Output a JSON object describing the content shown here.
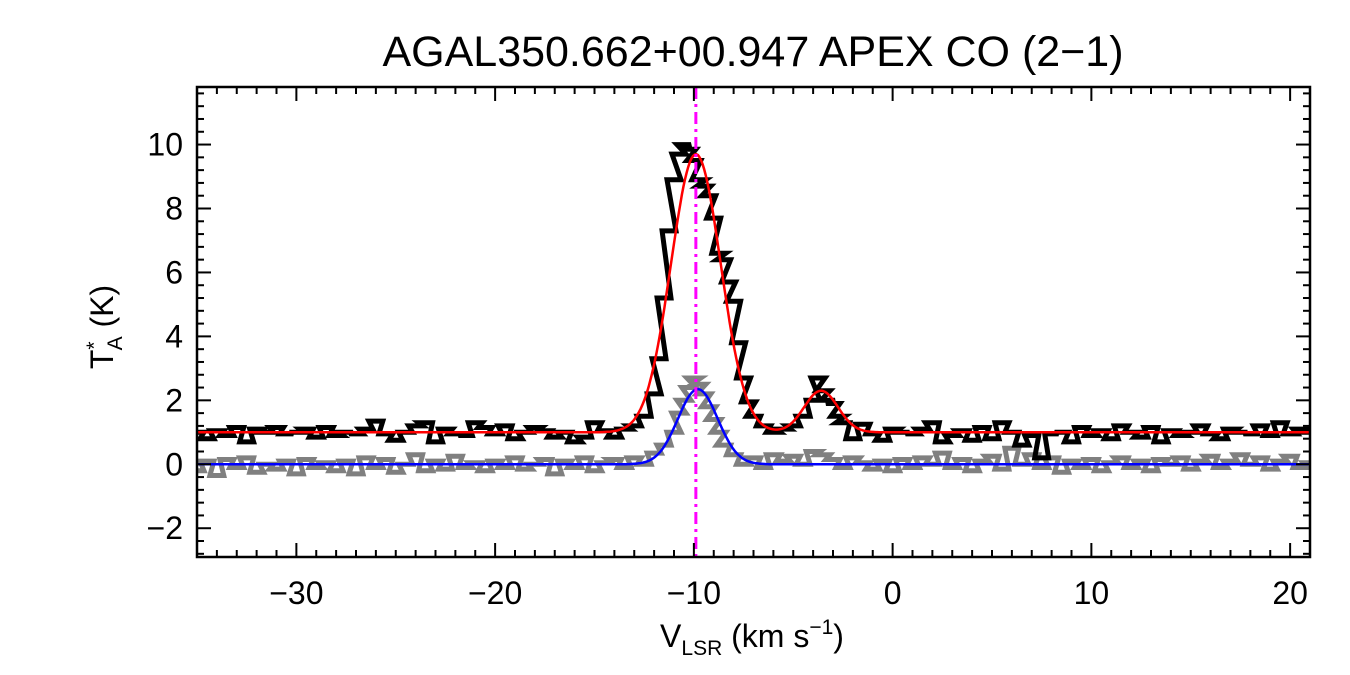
{
  "chart_data": {
    "type": "line",
    "title": "AGAL350.662+00.947  APEX CO (2−1)",
    "xlabel": {
      "main": "V",
      "sub": "LSR",
      "rest": " (km s",
      "sup": "−1",
      "end": ")"
    },
    "ylabel": {
      "main": "T",
      "sup": "*",
      "sub": "A",
      "rest": " (K)"
    },
    "xlim": [
      -35,
      21
    ],
    "ylim": [
      -2.9,
      11.8
    ],
    "x_ticks": [
      -30,
      -20,
      -10,
      0,
      10,
      20
    ],
    "x_tick_labels": [
      "−30",
      "−20",
      "−10",
      "0",
      "10",
      "20"
    ],
    "y_ticks": [
      -2,
      0,
      2,
      4,
      6,
      8,
      10
    ],
    "y_tick_labels": [
      "−2",
      "0",
      "2",
      "4",
      "6",
      "8",
      "10"
    ],
    "vline": {
      "x": -9.9,
      "color": "#ff00ff",
      "style": "dash-dot"
    },
    "series": [
      {
        "kind": "histogram",
        "color": "#000000",
        "channel_width": 0.35,
        "points": [
          [
            -35,
            1.0
          ],
          [
            -34.5,
            0.8
          ],
          [
            -34,
            1.05
          ],
          [
            -33.5,
            0.9
          ],
          [
            -33,
            1.15
          ],
          [
            -32.5,
            0.7
          ],
          [
            -32,
            1.1
          ],
          [
            -31.5,
            1.0
          ],
          [
            -31,
            1.15
          ],
          [
            -30.5,
            0.95
          ],
          [
            -30,
            1.0
          ],
          [
            -29.5,
            1.1
          ],
          [
            -29,
            0.85
          ],
          [
            -28.5,
            1.15
          ],
          [
            -28,
            0.9
          ],
          [
            -27.5,
            1.0
          ],
          [
            -27,
            0.95
          ],
          [
            -26.5,
            1.1
          ],
          [
            -26,
            1.35
          ],
          [
            -25.5,
            0.95
          ],
          [
            -25,
            0.75
          ],
          [
            -24.5,
            1.0
          ],
          [
            -24,
            1.2
          ],
          [
            -23.5,
            1.3
          ],
          [
            -23,
            0.7
          ],
          [
            -22.5,
            1.1
          ],
          [
            -22,
            0.95
          ],
          [
            -21.5,
            0.9
          ],
          [
            -21,
            1.3
          ],
          [
            -20.5,
            1.15
          ],
          [
            -20,
            0.95
          ],
          [
            -19.5,
            1.2
          ],
          [
            -19,
            0.8
          ],
          [
            -18.5,
            1.0
          ],
          [
            -18,
            1.15
          ],
          [
            -17.5,
            1.05
          ],
          [
            -17,
            0.85
          ],
          [
            -16.5,
            1.0
          ],
          [
            -16,
            0.7
          ],
          [
            -15.5,
            0.85
          ],
          [
            -15,
            1.3
          ],
          [
            -14.5,
            1.05
          ],
          [
            -14,
            0.85
          ],
          [
            -13.5,
            1.1
          ],
          [
            -13,
            1.2
          ],
          [
            -12.5,
            1.5
          ],
          [
            -12,
            2.2
          ],
          [
            -11.75,
            3.3
          ],
          [
            -11.5,
            5.2
          ],
          [
            -11.25,
            7.3
          ],
          [
            -11,
            8.9
          ],
          [
            -10.75,
            9.7
          ],
          [
            -10.5,
            10.0
          ],
          [
            -10.25,
            9.85
          ],
          [
            -10,
            9.5
          ],
          [
            -9.75,
            8.9
          ],
          [
            -9.5,
            8.7
          ],
          [
            -9.25,
            8.4
          ],
          [
            -9,
            7.7
          ],
          [
            -8.75,
            6.6
          ],
          [
            -8.5,
            6.4
          ],
          [
            -8.25,
            5.7
          ],
          [
            -8,
            5.1
          ],
          [
            -7.75,
            3.8
          ],
          [
            -7.5,
            2.7
          ],
          [
            -7.25,
            1.95
          ],
          [
            -7,
            1.5
          ],
          [
            -6.5,
            1.2
          ],
          [
            -6,
            1.0
          ],
          [
            -5.5,
            1.1
          ],
          [
            -5,
            1.2
          ],
          [
            -4.5,
            1.5
          ],
          [
            -4,
            2.0
          ],
          [
            -3.75,
            2.7
          ],
          [
            -3.5,
            2.3
          ],
          [
            -3.25,
            2.0
          ],
          [
            -3,
            1.9
          ],
          [
            -2.75,
            1.5
          ],
          [
            -2.5,
            1.3
          ],
          [
            -2,
            0.8
          ],
          [
            -1.5,
            1.25
          ],
          [
            -1,
            0.95
          ],
          [
            -0.5,
            0.75
          ],
          [
            0,
            1.1
          ],
          [
            0.5,
            1.0
          ],
          [
            1,
            0.95
          ],
          [
            1.5,
            1.1
          ],
          [
            2,
            1.3
          ],
          [
            2.5,
            0.7
          ],
          [
            3,
            0.9
          ],
          [
            3.5,
            1.05
          ],
          [
            4,
            0.75
          ],
          [
            4.5,
            1.15
          ],
          [
            5,
            0.8
          ],
          [
            5.5,
            1.3
          ],
          [
            6,
            1.0
          ],
          [
            6.5,
            0.6
          ],
          [
            7,
            0.9
          ],
          [
            7.5,
            0.2
          ],
          [
            8,
            0.95
          ],
          [
            8.5,
            1.0
          ],
          [
            9,
            0.7
          ],
          [
            9.5,
            1.15
          ],
          [
            10,
            0.9
          ],
          [
            10.5,
            1.05
          ],
          [
            11,
            0.8
          ],
          [
            11.5,
            1.2
          ],
          [
            12,
            1.0
          ],
          [
            12.5,
            0.85
          ],
          [
            13,
            1.15
          ],
          [
            13.5,
            0.7
          ],
          [
            14,
            1.05
          ],
          [
            14.5,
            0.9
          ],
          [
            15,
            1.0
          ],
          [
            15.5,
            1.2
          ],
          [
            16,
            0.95
          ],
          [
            16.5,
            0.8
          ],
          [
            17,
            1.1
          ],
          [
            17.5,
            1.0
          ],
          [
            18,
            0.95
          ],
          [
            18.5,
            1.2
          ],
          [
            19,
            0.9
          ],
          [
            19.5,
            1.3
          ],
          [
            20,
            0.95
          ],
          [
            20.5,
            1.1
          ],
          [
            21,
            1.0
          ]
        ]
      },
      {
        "kind": "histogram",
        "color": "#808080",
        "channel_width": 0.35,
        "points": [
          [
            -35,
            -0.2
          ],
          [
            -34.5,
            0.1
          ],
          [
            -34,
            -0.35
          ],
          [
            -33.5,
            0.15
          ],
          [
            -33,
            -0.1
          ],
          [
            -32.5,
            0.2
          ],
          [
            -32,
            -0.25
          ],
          [
            -31.5,
            0.0
          ],
          [
            -31,
            -0.15
          ],
          [
            -30.5,
            0.1
          ],
          [
            -30,
            -0.3
          ],
          [
            -29.5,
            0.15
          ],
          [
            -29,
            -0.1
          ],
          [
            -28.5,
            0.05
          ],
          [
            -28,
            -0.2
          ],
          [
            -27.5,
            0.1
          ],
          [
            -27,
            -0.3
          ],
          [
            -26.5,
            0.2
          ],
          [
            -26,
            -0.1
          ],
          [
            -25.5,
            0.15
          ],
          [
            -25,
            -0.25
          ],
          [
            -24.5,
            0.0
          ],
          [
            -24,
            0.3
          ],
          [
            -23.5,
            -0.2
          ],
          [
            -23,
            0.1
          ],
          [
            -22.5,
            -0.15
          ],
          [
            -22,
            0.25
          ],
          [
            -21.5,
            -0.1
          ],
          [
            -21,
            0.05
          ],
          [
            -20.5,
            -0.2
          ],
          [
            -20,
            0.1
          ],
          [
            -19.5,
            -0.1
          ],
          [
            -19,
            0.2
          ],
          [
            -18.5,
            -0.15
          ],
          [
            -18,
            0.0
          ],
          [
            -17.5,
            0.15
          ],
          [
            -17,
            -0.3
          ],
          [
            -16.5,
            0.1
          ],
          [
            -16,
            -0.1
          ],
          [
            -15.5,
            0.2
          ],
          [
            -15,
            -0.2
          ],
          [
            -14.5,
            0.05
          ],
          [
            -14,
            0.15
          ],
          [
            -13.5,
            -0.1
          ],
          [
            -13,
            0.2
          ],
          [
            -12.5,
            0.0
          ],
          [
            -12,
            0.35
          ],
          [
            -11.5,
            0.6
          ],
          [
            -11,
            1.0
          ],
          [
            -10.75,
            1.6
          ],
          [
            -10.5,
            2.0
          ],
          [
            -10.25,
            2.4
          ],
          [
            -10,
            2.7
          ],
          [
            -9.75,
            2.5
          ],
          [
            -9.5,
            2.2
          ],
          [
            -9.25,
            1.8
          ],
          [
            -9,
            1.4
          ],
          [
            -8.75,
            1.0
          ],
          [
            -8.5,
            0.6
          ],
          [
            -8,
            0.3
          ],
          [
            -7.5,
            0.0
          ],
          [
            -7,
            0.2
          ],
          [
            -6.5,
            -0.1
          ],
          [
            -6,
            0.3
          ],
          [
            -5.5,
            0.1
          ],
          [
            -5,
            0.25
          ],
          [
            -4.5,
            0.0
          ],
          [
            -4,
            0.4
          ],
          [
            -3.5,
            0.3
          ],
          [
            -3,
            0.15
          ],
          [
            -2.5,
            -0.1
          ],
          [
            -2,
            0.2
          ],
          [
            -1.5,
            0.05
          ],
          [
            -1,
            -0.15
          ],
          [
            -0.5,
            0.1
          ],
          [
            0,
            -0.2
          ],
          [
            0.5,
            0.15
          ],
          [
            1,
            -0.1
          ],
          [
            1.5,
            0.2
          ],
          [
            2,
            0.0
          ],
          [
            2.5,
            0.35
          ],
          [
            3,
            -0.1
          ],
          [
            3.5,
            0.15
          ],
          [
            4,
            -0.2
          ],
          [
            4.5,
            0.1
          ],
          [
            5,
            0.25
          ],
          [
            5.5,
            -0.15
          ],
          [
            6,
            0.5
          ],
          [
            6.5,
            0.0
          ],
          [
            7,
            0.3
          ],
          [
            7.5,
            -0.1
          ],
          [
            8,
            0.2
          ],
          [
            8.5,
            -0.25
          ],
          [
            9,
            0.1
          ],
          [
            9.5,
            -0.1
          ],
          [
            10,
            0.15
          ],
          [
            10.5,
            -0.2
          ],
          [
            11,
            0.05
          ],
          [
            11.5,
            0.2
          ],
          [
            12,
            -0.1
          ],
          [
            12.5,
            0.1
          ],
          [
            13,
            -0.2
          ],
          [
            13.5,
            0.15
          ],
          [
            14,
            0.0
          ],
          [
            14.5,
            0.2
          ],
          [
            15,
            -0.15
          ],
          [
            15.5,
            0.1
          ],
          [
            16,
            0.25
          ],
          [
            16.5,
            -0.1
          ],
          [
            17,
            0.1
          ],
          [
            17.5,
            0.3
          ],
          [
            18,
            0.0
          ],
          [
            18.5,
            0.2
          ],
          [
            19,
            -0.15
          ],
          [
            19.5,
            0.1
          ],
          [
            20,
            0.25
          ],
          [
            20.5,
            -0.1
          ],
          [
            21,
            0.05
          ]
        ]
      },
      {
        "kind": "fit",
        "color": "#ff0000",
        "baseline": 1.0,
        "components": [
          {
            "amplitude": 8.7,
            "center": -9.9,
            "sigma": 1.25
          },
          {
            "amplitude": 1.3,
            "center": -3.6,
            "sigma": 0.85
          }
        ]
      },
      {
        "kind": "fit",
        "color": "#0000ff",
        "baseline": 0.0,
        "components": [
          {
            "amplitude": 2.35,
            "center": -9.8,
            "sigma": 1.0
          }
        ]
      }
    ]
  }
}
